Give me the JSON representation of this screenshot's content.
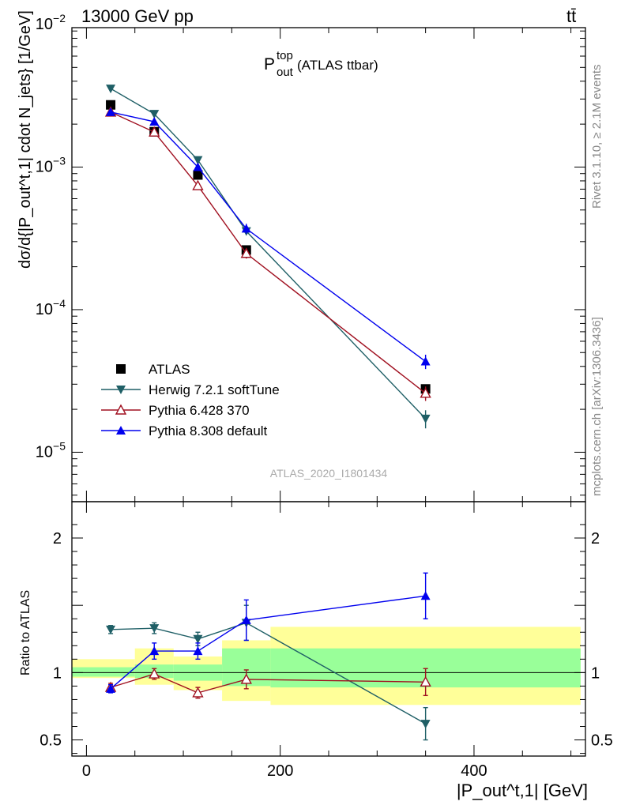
{
  "header": {
    "left": "13000 GeV pp",
    "right": "tt̄"
  },
  "title": {
    "main": "P",
    "sup": "top",
    "sub": "out",
    "rest": " (ATLAS ttbar)"
  },
  "side_labels": {
    "rivet": "Rivet 3.1.10, ≥ 2.1M events",
    "mcplots": "mcplots.cern.ch [arXiv:1306.3436]"
  },
  "watermark": "ATLAS_2020_I1801434",
  "ylabel_top": "dσ/d{|P_out^t,1| cdot N_jets} [1/GeV]",
  "ylabel_bottom": "Ratio to ATLAS",
  "xlabel": "|P_out^t,1| [GeV]",
  "colors": {
    "data": "#000000",
    "herwig": "#1f5f66",
    "pythia6": "#a01020",
    "pythia8": "#0000ee",
    "band_inner": "#99ff99",
    "band_outer": "#ffff99"
  },
  "chart_data": [
    {
      "type": "line",
      "panel": "main",
      "yscale": "log",
      "xlim": [
        -15,
        515
      ],
      "ylim": [
        4.5e-06,
        0.0095
      ],
      "x_ticks": [
        0,
        200,
        400
      ],
      "y_ticks": [
        "10^-5",
        "10^-4",
        "10^-3",
        "10^-2"
      ],
      "legend_position": "lower-left",
      "x": [
        25,
        70,
        115,
        165,
        350
      ],
      "x_bins": [
        [
          0,
          50
        ],
        [
          50,
          90
        ],
        [
          90,
          140
        ],
        [
          140,
          190
        ],
        [
          190,
          510
        ]
      ],
      "series": [
        {
          "name": "ATLAS",
          "key": "data",
          "marker": "square",
          "values": [
            0.00273,
            0.00177,
            0.00088,
            0.000262,
            2.78e-05
          ]
        },
        {
          "name": "Herwig 7.2.1 softTune",
          "key": "herwig",
          "marker": "triangle-down",
          "values": [
            0.00355,
            0.00236,
            0.00112,
            0.000355,
            1.72e-05
          ],
          "errors": [
            0.0001,
            8e-05,
            4e-05,
            2e-05,
            2.5e-06
          ]
        },
        {
          "name": "Pythia 6.428 370",
          "key": "pythia6",
          "marker": "triangle-up-open",
          "values": [
            0.00243,
            0.00176,
            0.00074,
            0.000248,
            2.59e-05
          ],
          "errors": [
            0.0001,
            6e-05,
            4e-05,
            2e-05,
            3e-06
          ]
        },
        {
          "name": "Pythia 8.308 default",
          "key": "pythia8",
          "marker": "triangle-up",
          "values": [
            0.00243,
            0.00208,
            0.001,
            0.00037,
            4.33e-05
          ],
          "errors": [
            0.0001,
            8e-05,
            5e-05,
            3e-05,
            5e-06
          ]
        }
      ]
    },
    {
      "type": "line",
      "panel": "ratio",
      "ylabel": "Ratio to ATLAS",
      "xlim": [
        -15,
        515
      ],
      "ylim": [
        0.38,
        2.27
      ],
      "y_ticks": [
        0.5,
        1,
        2
      ],
      "x": [
        25,
        70,
        115,
        165,
        350
      ],
      "bands": [
        {
          "x": [
            -15,
            50
          ],
          "inner": [
            0.97,
            1.04
          ],
          "outer": [
            0.96,
            1.1
          ]
        },
        {
          "x": [
            50,
            90
          ],
          "inner": [
            0.96,
            1.06
          ],
          "outer": [
            0.91,
            1.18
          ]
        },
        {
          "x": [
            90,
            140
          ],
          "inner": [
            0.94,
            1.06
          ],
          "outer": [
            0.87,
            1.12
          ]
        },
        {
          "x": [
            140,
            190
          ],
          "inner": [
            0.9,
            1.18
          ],
          "outer": [
            0.79,
            1.24
          ]
        },
        {
          "x": [
            190,
            510
          ],
          "inner": [
            0.89,
            1.18
          ],
          "outer": [
            0.76,
            1.34
          ]
        }
      ],
      "series": [
        {
          "name": "Herwig 7.2.1 softTune",
          "key": "herwig",
          "marker": "triangle-down",
          "values": [
            1.32,
            1.33,
            1.25,
            1.37,
            0.62
          ],
          "errors": [
            0.03,
            0.04,
            0.05,
            0.13,
            0.12
          ]
        },
        {
          "name": "Pythia 6.428 370",
          "key": "pythia6",
          "marker": "triangle-up-open",
          "values": [
            0.89,
            0.99,
            0.85,
            0.95,
            0.93
          ],
          "errors": [
            0.03,
            0.04,
            0.04,
            0.07,
            0.1
          ]
        },
        {
          "name": "Pythia 8.308 default",
          "key": "pythia8",
          "marker": "triangle-up",
          "values": [
            0.88,
            1.16,
            1.16,
            1.39,
            1.57
          ],
          "errors": [
            0.03,
            0.06,
            0.06,
            0.15,
            0.17
          ]
        }
      ]
    }
  ]
}
